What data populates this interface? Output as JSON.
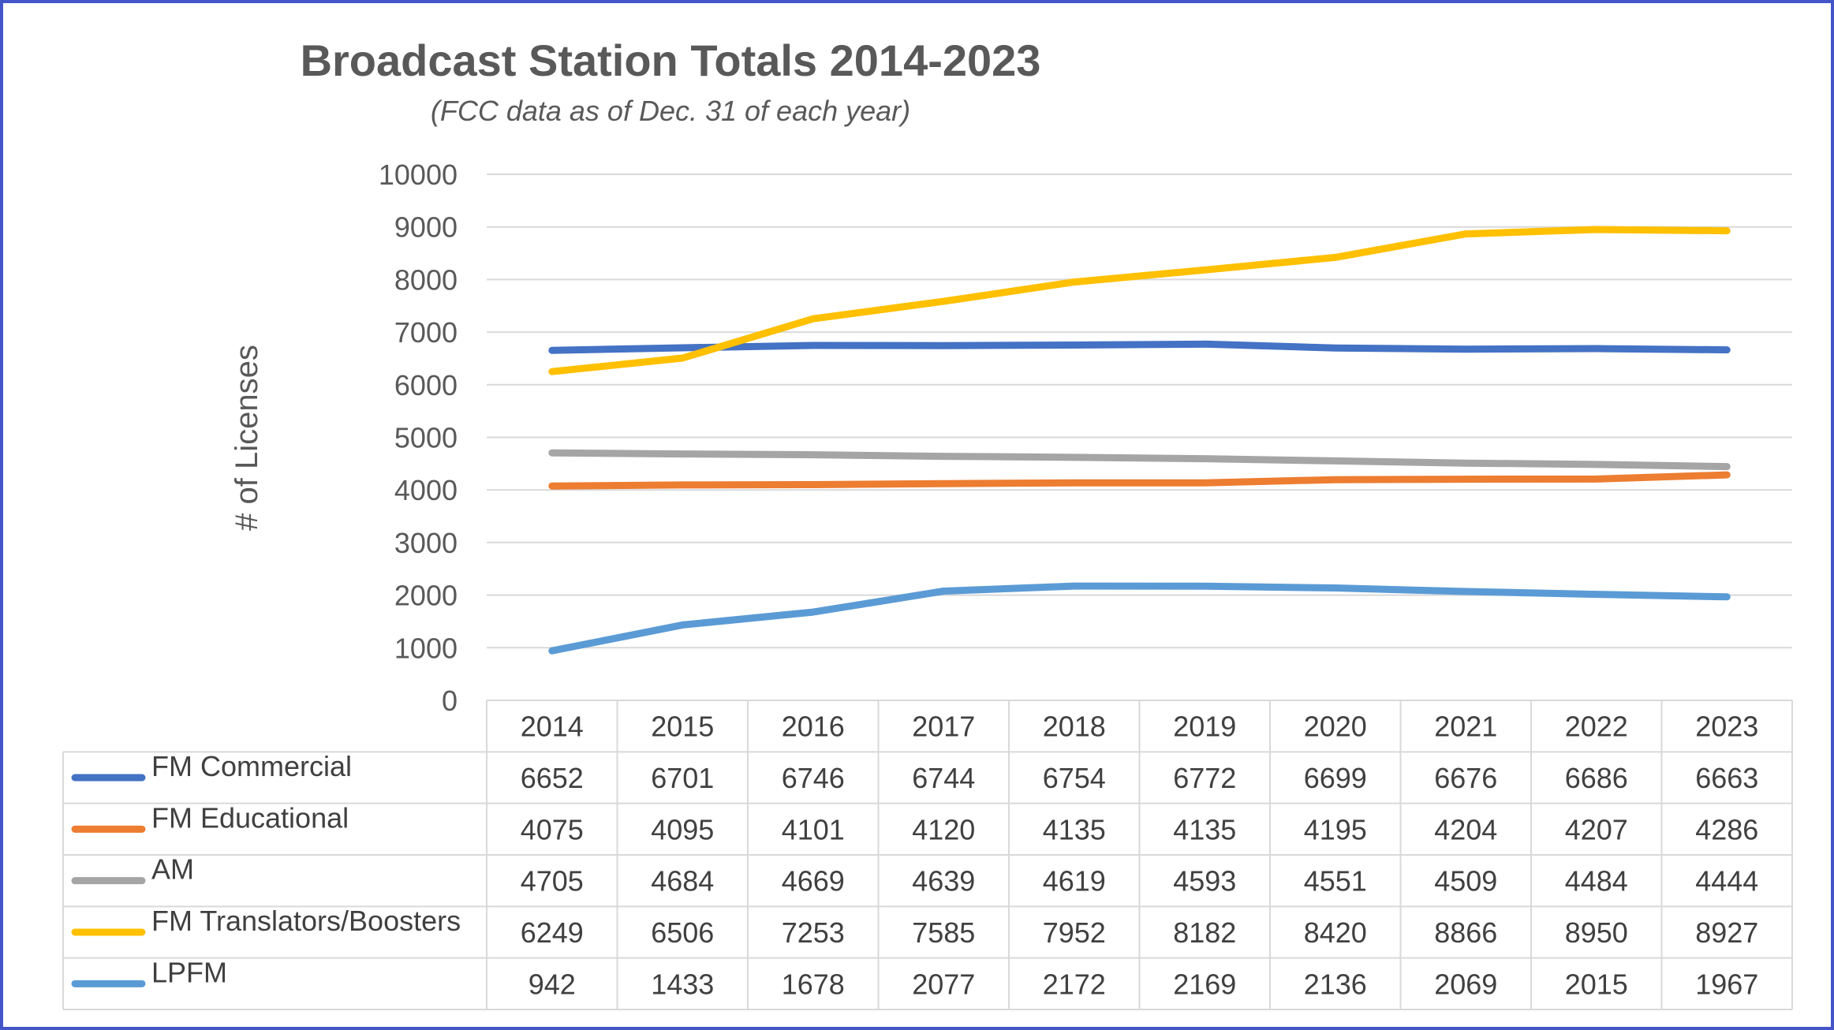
{
  "chart_data": {
    "type": "line",
    "title": "Broadcast Station Totals 2014-2023",
    "subtitle": "(FCC data as of Dec. 31 of each year)",
    "ylabel": "# of Licenses",
    "xlabel": "",
    "ylim": [
      0,
      10000
    ],
    "yticks": [
      0,
      1000,
      2000,
      3000,
      4000,
      5000,
      6000,
      7000,
      8000,
      9000,
      10000
    ],
    "grid": true,
    "legend": "data table below chart",
    "categories": [
      "2014",
      "2015",
      "2016",
      "2017",
      "2018",
      "2019",
      "2020",
      "2021",
      "2022",
      "2023"
    ],
    "series": [
      {
        "name": "FM Commercial",
        "color": "#4472c4",
        "values": [
          6652,
          6701,
          6746,
          6744,
          6754,
          6772,
          6699,
          6676,
          6686,
          6663
        ]
      },
      {
        "name": "FM Educational",
        "color": "#ed7d31",
        "values": [
          4075,
          4095,
          4101,
          4120,
          4135,
          4135,
          4195,
          4204,
          4207,
          4286
        ]
      },
      {
        "name": "AM",
        "color": "#a5a5a5",
        "values": [
          4705,
          4684,
          4669,
          4639,
          4619,
          4593,
          4551,
          4509,
          4484,
          4444
        ]
      },
      {
        "name": "FM Translators/Boosters",
        "color": "#ffc000",
        "values": [
          6249,
          6506,
          7253,
          7585,
          7952,
          8182,
          8420,
          8866,
          8950,
          8927
        ]
      },
      {
        "name": "LPFM",
        "color": "#5b9bd5",
        "values": [
          942,
          1433,
          1678,
          2077,
          2172,
          2169,
          2136,
          2069,
          2015,
          1967
        ]
      }
    ]
  }
}
